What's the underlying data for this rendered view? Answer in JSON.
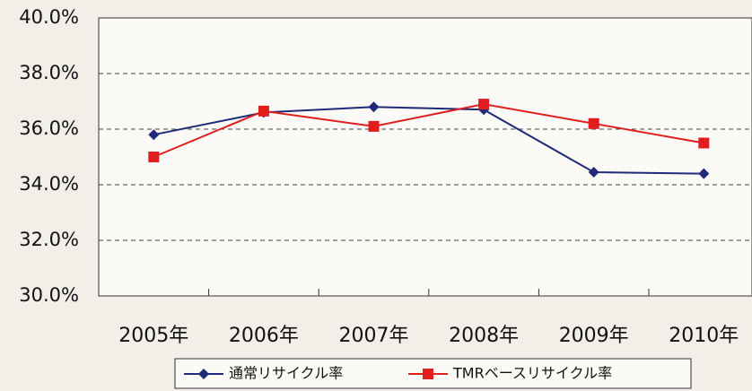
{
  "chart_data": {
    "type": "line",
    "categories": [
      "2005年",
      "2006年",
      "2007年",
      "2008年",
      "2009年",
      "2010年"
    ],
    "series": [
      {
        "name": "通常リサイクル率",
        "color": "#1f2a78",
        "marker": "diamond",
        "values": [
          35.8,
          36.6,
          36.8,
          36.7,
          34.45,
          34.4
        ]
      },
      {
        "name": "TMRベースリサイクル率",
        "color": "#e01e1e",
        "marker": "square",
        "values": [
          35.0,
          36.65,
          36.1,
          36.9,
          36.2,
          35.5
        ]
      }
    ],
    "ylim": [
      30,
      40
    ],
    "yticks": [
      {
        "value": 30,
        "label": "30.0%"
      },
      {
        "value": 32,
        "label": "32.0%"
      },
      {
        "value": 34,
        "label": "34.0%"
      },
      {
        "value": 36,
        "label": "36.0%"
      },
      {
        "value": 38,
        "label": "38.0%"
      },
      {
        "value": 40,
        "label": "40.0%"
      }
    ],
    "grid": true,
    "legend": "bottom"
  }
}
